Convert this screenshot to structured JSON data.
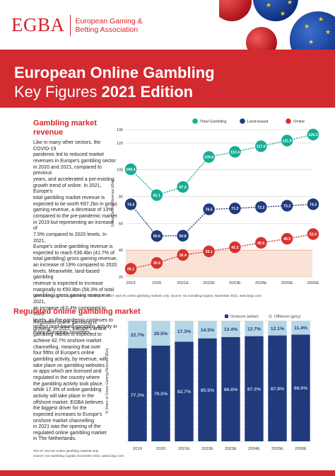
{
  "header": {
    "logo_mark": "EGBA",
    "logo_line1": "European Gaming &",
    "logo_line2": "Betting Association",
    "title_line1": "European Online Gambling",
    "title_line2_a": "Key Figures ",
    "title_line2_b": "2021 Edition"
  },
  "section1": {
    "heading_line1": "Gambling market",
    "heading_line2": "revenue",
    "body_lines": [
      "Like in many other sectors, the COVID-19",
      "pandemic led to reduced market",
      "revenues in Europe's gambling sector",
      "in 2020 and 2021, compared to previous",
      "years, and accelerated a pre-existing",
      "growth trend of online. In 2021, Europe's",
      "total gambling market revenue is",
      "expected to be worth €87.2bn in gross",
      "gaming revenue, a decrease of 13%",
      "compared to the pre-pandemic market",
      "in 2019 but representing an increase of",
      "7.5% compared to 2020 levels. In 2021,",
      "Europe's online gambling revenue is",
      "expected to reach €36.4bn (41.7% of",
      "total gambling) gross gaming revenue,",
      "an increase of 19% compared to 2020",
      "levels. Meanwhile, land-based gambling",
      "revenue is expected to increase",
      "marginally to €50.8bn (58.3% of total",
      "gambling) gross gaming revenue in 2021,",
      "an increase of 0.4% compared to 2020",
      "levels, as the pandemic continues to",
      "restrict land-based gambling activity in",
      "many European countries."
    ],
    "note": "* Data points may be adjusted due to rounding. ** EU-27 and UK online gambling markets only. Source: H2 Gambling Capital, November 2021, www.h2gc.com"
  },
  "section2": {
    "heading": "Regulated online gambling market",
    "body_lines": [
      "Regulated online gambling is",
      "growing. In 2021, Europe's online",
      "gambling market is expected to",
      "achieve 82.7% onshore market",
      "channelling, meaning that over",
      "four fifths of Europe's online",
      "gambling activity, by revenue, will",
      "take place on gambling websites",
      "or apps which are licensed and",
      "regulated in the country where",
      "the gambling activity took place,",
      "while 17.3% of online gambling",
      "activity will take place in the",
      "offshore market. EGBA believes",
      "the biggest driver for the",
      "expected increases to Europe's",
      "onshore market channelling",
      "in 2021 was the opening of the",
      "regulated online gambling market",
      "in The Netherlands."
    ],
    "note_line1": "*EU-27 and UK online gambling markets only.",
    "note_line2": "Source: H2 Gambling Capital, November 2021, www.h2gc.com"
  },
  "colors": {
    "brand_red": "#d22a2f",
    "total_teal": "#1aab94",
    "land_navy": "#213a7c",
    "online_red": "#d8322f",
    "onshore_navy": "#213a7c",
    "offshore_grey": "#b4d6e6"
  },
  "chart_data": [
    {
      "type": "line",
      "x": [
        "2019",
        "2020",
        "2021E",
        "2022E",
        "2023E",
        "2024E",
        "2025E",
        "2026E"
      ],
      "ylabel": "Gross Gaming Revenue (€bn)",
      "ylim": [
        20,
        130
      ],
      "yticks": [
        "20",
        "40",
        "60",
        "80",
        "100",
        "120",
        "130"
      ],
      "legend_position": "top",
      "series": [
        {
          "name": "Total Gambling",
          "values": [
            100.4,
            81.1,
            87.2,
            109.6,
            113.4,
            117.6,
            121.8,
            126.3
          ]
        },
        {
          "name": "Land-based",
          "values": [
            74.3,
            50.6,
            50.8,
            70.5,
            71.2,
            72.2,
            73.2,
            74.3
          ]
        },
        {
          "name": "Online",
          "values": [
            26.1,
            30.5,
            36.4,
            39.1,
            42.2,
            45.5,
            48.5,
            52.0
          ]
        }
      ],
      "labels": {
        "Total Gambling": [
          "100.4",
          "81.1",
          "87.2",
          "109.6",
          "113.4",
          "117.6",
          "121.8",
          "126.3"
        ],
        "Land-based": [
          "74.3",
          "50.6",
          "50.8",
          "70.5",
          "71.2",
          "72.2",
          "73.2",
          "74.3"
        ],
        "Online": [
          "26.1",
          "30.5",
          "36.4",
          "39.1",
          "42.2",
          "45.5",
          "48.5",
          "52.0"
        ]
      },
      "grid": true
    },
    {
      "type": "bar",
      "stacked": true,
      "categories": [
        "2019",
        "2020",
        "2021E",
        "2022E",
        "2023E",
        "2024E",
        "2025E",
        "2026E"
      ],
      "ylabel": "% Share of Gross Gaming Revenue (€bn)",
      "ylim": [
        0,
        100
      ],
      "legend_position": "top",
      "series": [
        {
          "name": "Onshore (white)",
          "values": [
            77.3,
            79.5,
            82.7,
            85.5,
            86.6,
            87.3,
            87.9,
            88.6
          ]
        },
        {
          "name": "Offshore (grey)",
          "values": [
            22.7,
            20.5,
            17.3,
            14.5,
            13.4,
            12.7,
            12.1,
            11.4
          ]
        }
      ],
      "labels": {
        "Onshore (white)": [
          "77.3%",
          "79.5%",
          "82.7%",
          "85.5%",
          "86.6%",
          "87.3%",
          "87.9%",
          "88.6%"
        ],
        "Offshore (grey)": [
          "22.7%",
          "20.5%",
          "17.3%",
          "14.5%",
          "13.4%",
          "12.7%",
          "12.1%",
          "11.4%"
        ]
      }
    }
  ]
}
